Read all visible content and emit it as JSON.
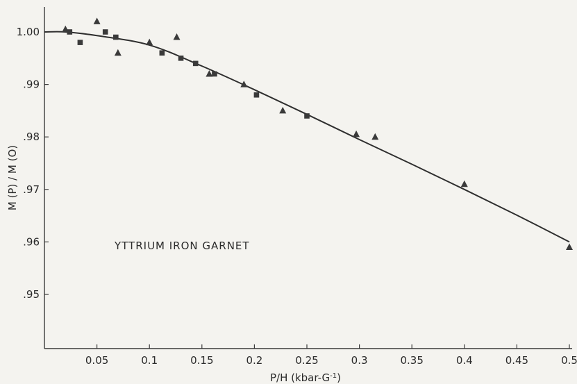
{
  "chart_data": {
    "type": "scatter",
    "title": "",
    "xlabel": "P/H (kbar-G",
    "xlabel_sup": "-1",
    "xlabel_close": ")",
    "ylabel": "M (P) / M (O)",
    "xlim": [
      0,
      0.5
    ],
    "ylim": [
      0.94,
      1.004
    ],
    "annotation": "YTTRIUM IRON GARNET",
    "x_ticks": [
      {
        "value": 0.05,
        "label": "0.05"
      },
      {
        "value": 0.1,
        "label": "0.1"
      },
      {
        "value": 0.15,
        "label": "0.15"
      },
      {
        "value": 0.2,
        "label": "0.2"
      },
      {
        "value": 0.25,
        "label": "0.25"
      },
      {
        "value": 0.3,
        "label": "0.3"
      },
      {
        "value": 0.35,
        "label": "0.35"
      },
      {
        "value": 0.4,
        "label": "0.4"
      },
      {
        "value": 0.45,
        "label": "0.45"
      },
      {
        "value": 0.5,
        "label": "0.5"
      }
    ],
    "y_ticks": [
      {
        "value": 1.0,
        "label": "1.00"
      },
      {
        "value": 0.99,
        "label": ".99"
      },
      {
        "value": 0.98,
        "label": ".98"
      },
      {
        "value": 0.97,
        "label": ".97"
      },
      {
        "value": 0.96,
        "label": ".96"
      },
      {
        "value": 0.95,
        "label": ".95"
      }
    ],
    "grid": false,
    "series": [
      {
        "marker": "triangle",
        "points": [
          {
            "x": 0.02,
            "y": 1.0005
          },
          {
            "x": 0.05,
            "y": 1.002
          },
          {
            "x": 0.07,
            "y": 0.996
          },
          {
            "x": 0.1,
            "y": 0.998
          },
          {
            "x": 0.126,
            "y": 0.999
          },
          {
            "x": 0.157,
            "y": 0.992
          },
          {
            "x": 0.19,
            "y": 0.99
          },
          {
            "x": 0.227,
            "y": 0.985
          },
          {
            "x": 0.297,
            "y": 0.9805
          },
          {
            "x": 0.315,
            "y": 0.98
          },
          {
            "x": 0.4,
            "y": 0.971
          },
          {
            "x": 0.5,
            "y": 0.959
          }
        ]
      },
      {
        "marker": "square",
        "points": [
          {
            "x": 0.024,
            "y": 1.0
          },
          {
            "x": 0.034,
            "y": 0.998
          },
          {
            "x": 0.058,
            "y": 1.0
          },
          {
            "x": 0.068,
            "y": 0.999
          },
          {
            "x": 0.112,
            "y": 0.996
          },
          {
            "x": 0.13,
            "y": 0.995
          },
          {
            "x": 0.144,
            "y": 0.994
          },
          {
            "x": 0.162,
            "y": 0.992
          },
          {
            "x": 0.202,
            "y": 0.988
          },
          {
            "x": 0.25,
            "y": 0.984
          }
        ]
      }
    ],
    "fit_curve": [
      {
        "x": 0.0,
        "y": 1.0
      },
      {
        "x": 0.02,
        "y": 1.0
      },
      {
        "x": 0.05,
        "y": 0.9993
      },
      {
        "x": 0.1,
        "y": 0.9975
      },
      {
        "x": 0.15,
        "y": 0.9935
      },
      {
        "x": 0.2,
        "y": 0.989
      },
      {
        "x": 0.25,
        "y": 0.9843
      },
      {
        "x": 0.3,
        "y": 0.9795
      },
      {
        "x": 0.35,
        "y": 0.9748
      },
      {
        "x": 0.4,
        "y": 0.97
      },
      {
        "x": 0.45,
        "y": 0.9651
      },
      {
        "x": 0.5,
        "y": 0.96
      }
    ],
    "colors": {
      "ink": "#2f2f2f",
      "background": "#f4f3ef"
    }
  }
}
